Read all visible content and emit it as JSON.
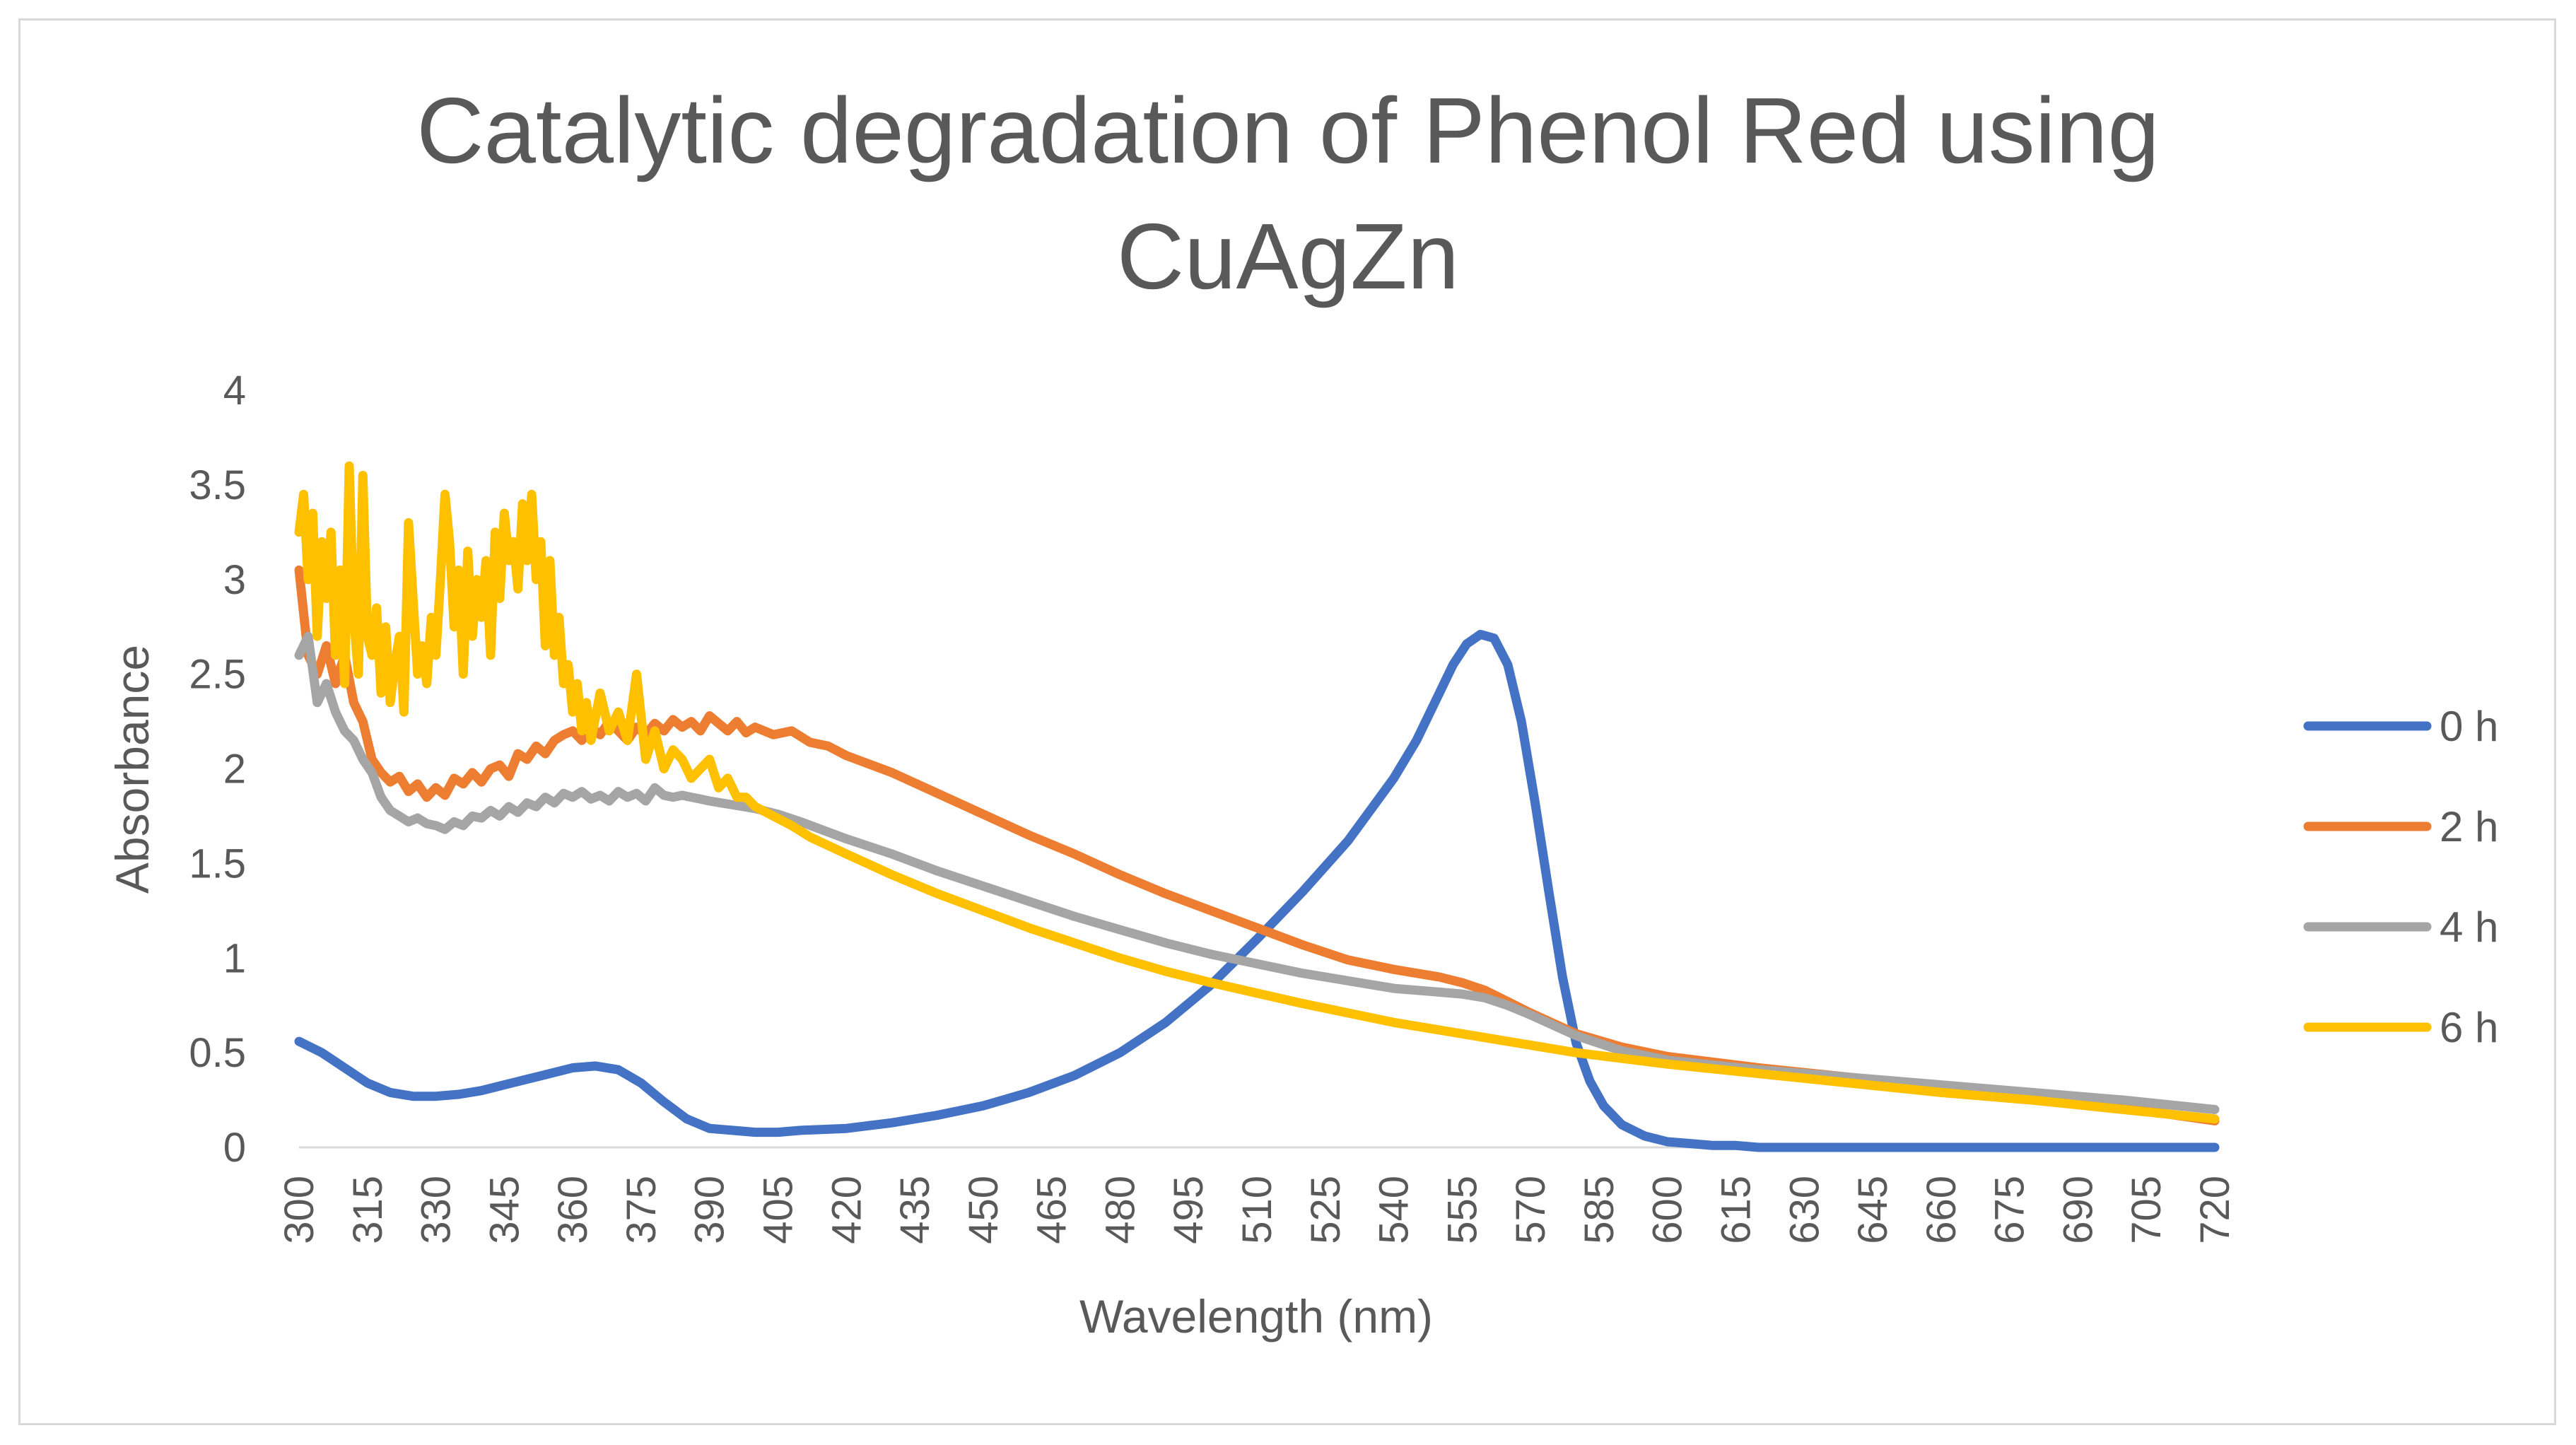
{
  "chart_data": {
    "type": "line",
    "title_lines": [
      "Catalytic degradation of Phenol Red using",
      "CuAgZn"
    ],
    "xlabel": "Wavelength (nm)",
    "ylabel": "Absorbance",
    "xlim": [
      300,
      720
    ],
    "ylim": [
      0,
      4
    ],
    "y_ticks": [
      "0",
      "0.5",
      "1",
      "1.5",
      "2",
      "2.5",
      "3",
      "3.5",
      "4"
    ],
    "x_ticks": [
      "300",
      "315",
      "330",
      "345",
      "360",
      "375",
      "390",
      "405",
      "420",
      "435",
      "450",
      "465",
      "480",
      "495",
      "510",
      "525",
      "540",
      "555",
      "570",
      "585",
      "600",
      "615",
      "630",
      "645",
      "660",
      "675",
      "690",
      "705",
      "720"
    ],
    "grid": false,
    "legend_position": "right",
    "series": [
      {
        "name": "0 h",
        "color": "#4472c4",
        "x": [
          300,
          305,
          310,
          315,
          320,
          325,
          330,
          335,
          340,
          345,
          350,
          355,
          360,
          365,
          370,
          375,
          380,
          385,
          390,
          395,
          400,
          405,
          410,
          420,
          430,
          440,
          450,
          460,
          470,
          480,
          490,
          500,
          510,
          520,
          530,
          540,
          545,
          550,
          553,
          556,
          559,
          562,
          565,
          568,
          571,
          574,
          577,
          580,
          583,
          586,
          590,
          595,
          600,
          605,
          610,
          615,
          620,
          630,
          640,
          660,
          680,
          700,
          720
        ],
        "y": [
          0.56,
          0.5,
          0.42,
          0.34,
          0.29,
          0.27,
          0.27,
          0.28,
          0.3,
          0.33,
          0.36,
          0.39,
          0.42,
          0.43,
          0.41,
          0.34,
          0.24,
          0.15,
          0.1,
          0.09,
          0.08,
          0.08,
          0.09,
          0.1,
          0.13,
          0.17,
          0.22,
          0.29,
          0.38,
          0.5,
          0.66,
          0.86,
          1.1,
          1.35,
          1.62,
          1.95,
          2.15,
          2.4,
          2.55,
          2.66,
          2.71,
          2.69,
          2.55,
          2.25,
          1.82,
          1.35,
          0.9,
          0.55,
          0.35,
          0.22,
          0.12,
          0.06,
          0.03,
          0.02,
          0.01,
          0.01,
          0.0,
          0.0,
          0.0,
          0.0,
          0.0,
          0.0,
          0.0
        ]
      },
      {
        "name": "2 h",
        "color": "#ed7d31",
        "x": [
          300,
          302,
          304,
          306,
          308,
          310,
          312,
          314,
          316,
          318,
          320,
          322,
          324,
          326,
          328,
          330,
          332,
          334,
          336,
          338,
          340,
          342,
          344,
          346,
          348,
          350,
          352,
          354,
          356,
          358,
          360,
          362,
          364,
          366,
          368,
          370,
          372,
          374,
          376,
          378,
          380,
          382,
          384,
          386,
          388,
          390,
          392,
          394,
          396,
          398,
          400,
          404,
          408,
          412,
          416,
          420,
          430,
          440,
          450,
          460,
          470,
          480,
          490,
          500,
          510,
          520,
          530,
          540,
          550,
          555,
          560,
          565,
          570,
          580,
          590,
          600,
          620,
          640,
          660,
          680,
          700,
          720
        ],
        "y": [
          3.05,
          2.6,
          2.5,
          2.65,
          2.45,
          2.6,
          2.35,
          2.25,
          2.05,
          1.98,
          1.93,
          1.96,
          1.88,
          1.92,
          1.85,
          1.9,
          1.86,
          1.95,
          1.92,
          1.98,
          1.93,
          2.0,
          2.02,
          1.96,
          2.08,
          2.05,
          2.12,
          2.08,
          2.15,
          2.18,
          2.2,
          2.15,
          2.22,
          2.18,
          2.25,
          2.2,
          2.15,
          2.22,
          2.18,
          2.24,
          2.2,
          2.26,
          2.22,
          2.25,
          2.2,
          2.28,
          2.24,
          2.2,
          2.25,
          2.19,
          2.22,
          2.18,
          2.2,
          2.14,
          2.12,
          2.07,
          1.98,
          1.87,
          1.76,
          1.65,
          1.55,
          1.44,
          1.34,
          1.25,
          1.16,
          1.07,
          0.99,
          0.94,
          0.9,
          0.87,
          0.83,
          0.77,
          0.71,
          0.6,
          0.53,
          0.48,
          0.42,
          0.37,
          0.32,
          0.27,
          0.21,
          0.14
        ]
      },
      {
        "name": "4 h",
        "color": "#a5a5a5",
        "x": [
          300,
          302,
          304,
          306,
          308,
          310,
          312,
          314,
          316,
          318,
          320,
          322,
          324,
          326,
          328,
          330,
          332,
          334,
          336,
          338,
          340,
          342,
          344,
          346,
          348,
          350,
          352,
          354,
          356,
          358,
          360,
          362,
          364,
          366,
          368,
          370,
          372,
          374,
          376,
          378,
          380,
          382,
          384,
          386,
          388,
          390,
          395,
          400,
          405,
          410,
          420,
          430,
          440,
          450,
          460,
          470,
          480,
          490,
          500,
          510,
          520,
          530,
          540,
          550,
          555,
          560,
          565,
          570,
          580,
          590,
          600,
          620,
          640,
          660,
          680,
          700,
          720
        ],
        "y": [
          2.6,
          2.7,
          2.35,
          2.45,
          2.3,
          2.2,
          2.15,
          2.05,
          1.98,
          1.85,
          1.78,
          1.75,
          1.72,
          1.74,
          1.71,
          1.7,
          1.68,
          1.72,
          1.7,
          1.75,
          1.74,
          1.78,
          1.75,
          1.8,
          1.77,
          1.82,
          1.8,
          1.85,
          1.82,
          1.87,
          1.85,
          1.88,
          1.84,
          1.86,
          1.83,
          1.88,
          1.85,
          1.87,
          1.83,
          1.9,
          1.86,
          1.85,
          1.86,
          1.85,
          1.84,
          1.83,
          1.81,
          1.79,
          1.76,
          1.72,
          1.63,
          1.55,
          1.46,
          1.38,
          1.3,
          1.22,
          1.15,
          1.08,
          1.02,
          0.97,
          0.92,
          0.88,
          0.84,
          0.82,
          0.81,
          0.79,
          0.75,
          0.7,
          0.59,
          0.51,
          0.46,
          0.41,
          0.37,
          0.33,
          0.29,
          0.25,
          0.2
        ]
      },
      {
        "name": "6 h",
        "color": "#ffc000",
        "x": [
          300,
          301,
          302,
          303,
          304,
          305,
          306,
          307,
          308,
          309,
          310,
          311,
          312,
          313,
          314,
          315,
          316,
          317,
          318,
          319,
          320,
          321,
          322,
          323,
          324,
          325,
          326,
          327,
          328,
          329,
          330,
          331,
          332,
          333,
          334,
          335,
          336,
          337,
          338,
          339,
          340,
          341,
          342,
          343,
          344,
          345,
          346,
          347,
          348,
          349,
          350,
          351,
          352,
          353,
          354,
          355,
          356,
          357,
          358,
          359,
          360,
          361,
          362,
          363,
          364,
          366,
          368,
          370,
          372,
          374,
          376,
          378,
          380,
          382,
          384,
          386,
          388,
          390,
          392,
          394,
          396,
          398,
          400,
          404,
          408,
          412,
          420,
          430,
          440,
          450,
          460,
          470,
          480,
          490,
          500,
          520,
          540,
          560,
          580,
          600,
          620,
          640,
          660,
          680,
          700,
          720
        ],
        "y": [
          3.25,
          3.45,
          3.0,
          3.35,
          2.7,
          3.2,
          2.9,
          3.25,
          2.6,
          3.05,
          2.45,
          3.6,
          2.8,
          2.5,
          3.55,
          2.7,
          2.6,
          2.85,
          2.4,
          2.75,
          2.35,
          2.55,
          2.7,
          2.3,
          3.3,
          2.9,
          2.5,
          2.65,
          2.45,
          2.8,
          2.6,
          3.0,
          3.45,
          3.2,
          2.75,
          3.05,
          2.5,
          3.15,
          2.7,
          3.0,
          2.8,
          3.1,
          2.6,
          3.25,
          2.9,
          3.35,
          3.1,
          3.2,
          2.95,
          3.4,
          3.1,
          3.45,
          3.0,
          3.2,
          2.65,
          3.1,
          2.6,
          2.8,
          2.45,
          2.55,
          2.3,
          2.45,
          2.2,
          2.35,
          2.15,
          2.4,
          2.2,
          2.3,
          2.15,
          2.5,
          2.05,
          2.2,
          2.0,
          2.1,
          2.05,
          1.95,
          2.0,
          2.05,
          1.9,
          1.95,
          1.85,
          1.85,
          1.8,
          1.75,
          1.7,
          1.64,
          1.55,
          1.44,
          1.34,
          1.25,
          1.16,
          1.08,
          1.0,
          0.93,
          0.87,
          0.76,
          0.66,
          0.58,
          0.5,
          0.44,
          0.39,
          0.34,
          0.29,
          0.25,
          0.2,
          0.15
        ]
      }
    ]
  }
}
